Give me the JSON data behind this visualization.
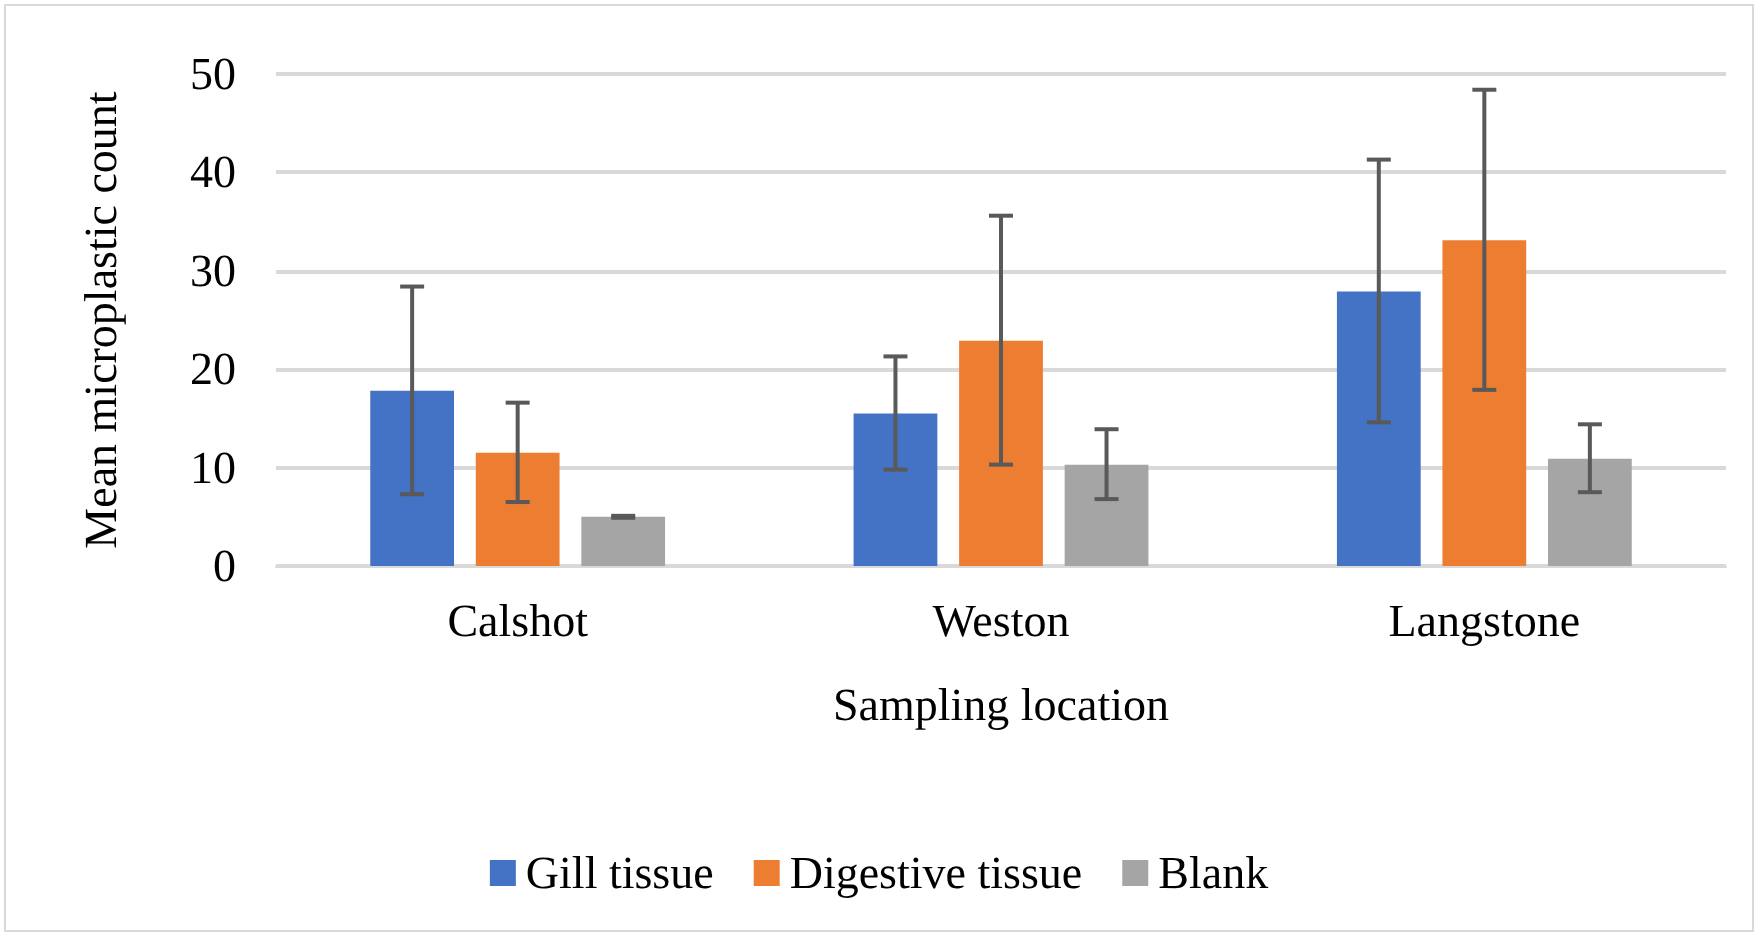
{
  "chart_data": {
    "type": "bar",
    "xlabel": "Sampling location",
    "ylabel": "Mean microplastic count",
    "categories": [
      "Calshot",
      "Weston",
      "Langstone"
    ],
    "series": [
      {
        "name": "Gill tissue",
        "color": "#4472c4",
        "values": [
          17.8,
          15.5,
          27.9
        ],
        "errors": [
          [
            7.3,
            28.4
          ],
          [
            9.8,
            21.3
          ],
          [
            14.6,
            41.3
          ]
        ]
      },
      {
        "name": "Digestive tissue",
        "color": "#ed7d31",
        "values": [
          11.5,
          22.9,
          33.1
        ],
        "errors": [
          [
            6.5,
            16.6
          ],
          [
            10.3,
            35.6
          ],
          [
            17.9,
            48.4
          ]
        ]
      },
      {
        "name": "Blank",
        "color": "#a5a5a5",
        "values": [
          5.0,
          10.3,
          10.9
        ],
        "errors": [
          [
            4.9,
            5.1
          ],
          [
            6.8,
            13.9
          ],
          [
            7.5,
            14.4
          ]
        ]
      }
    ],
    "ylim": [
      0,
      50
    ],
    "yticks": [
      0,
      10,
      20,
      30,
      40,
      50
    ],
    "grid": "y",
    "legend": "bottom"
  }
}
